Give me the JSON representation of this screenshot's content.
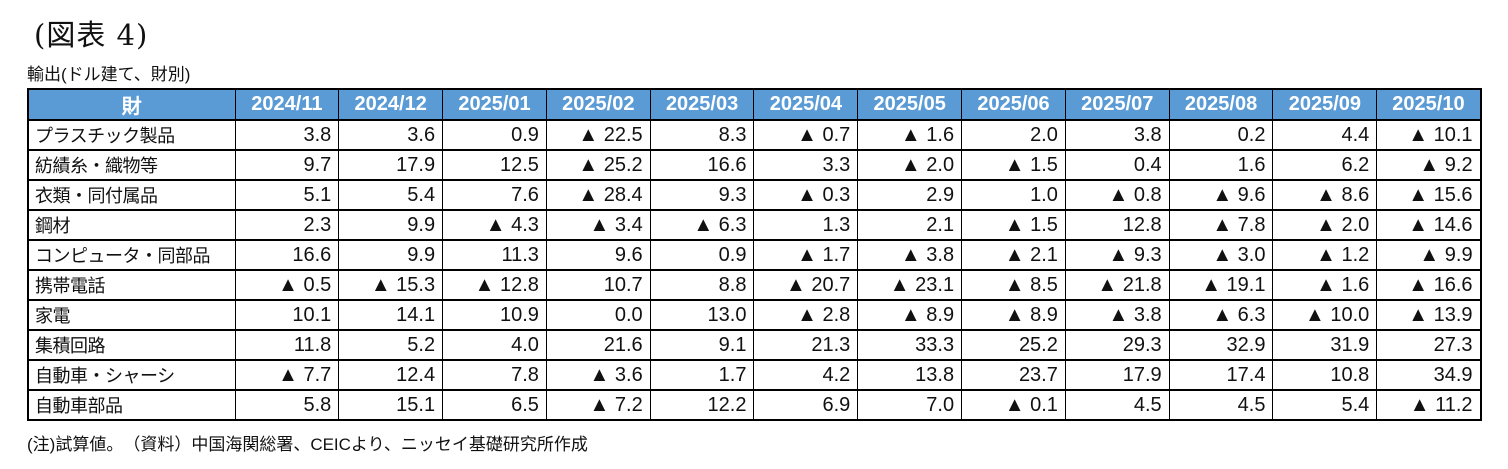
{
  "page": {
    "figure_label": "(図表 4)",
    "subtitle": "輸出(ドル建て、財別)",
    "note": "(注)試算値。　（資料）中国海関総署、CEICより、ニッセイ基礎研究所作成"
  },
  "colors": {
    "header_bg": "#5B9BD5",
    "header_text": "#FFFFFF",
    "border": "#000000"
  },
  "chart_data": {
    "type": "table",
    "title": "輸出(ドル建て、財別)",
    "header": [
      "財",
      "2024/11",
      "2024/12",
      "2025/01",
      "2025/02",
      "2025/03",
      "2025/04",
      "2025/05",
      "2025/06",
      "2025/07",
      "2025/08",
      "2025/09",
      "2025/10"
    ],
    "rows": [
      {
        "label": "プラスチック製品",
        "values": [
          "3.8",
          "3.6",
          "0.9",
          "▲ 22.5",
          "8.3",
          "▲ 0.7",
          "▲ 1.6",
          "2.0",
          "3.8",
          "0.2",
          "4.4",
          "▲ 10.1"
        ]
      },
      {
        "label": "紡績糸・織物等",
        "values": [
          "9.7",
          "17.9",
          "12.5",
          "▲ 25.2",
          "16.6",
          "3.3",
          "▲ 2.0",
          "▲ 1.5",
          "0.4",
          "1.6",
          "6.2",
          "▲ 9.2"
        ]
      },
      {
        "label": "衣類・同付属品",
        "values": [
          "5.1",
          "5.4",
          "7.6",
          "▲ 28.4",
          "9.3",
          "▲ 0.3",
          "2.9",
          "1.0",
          "▲ 0.8",
          "▲ 9.6",
          "▲ 8.6",
          "▲ 15.6"
        ]
      },
      {
        "label": "鋼材",
        "values": [
          "2.3",
          "9.9",
          "▲ 4.3",
          "▲ 3.4",
          "▲ 6.3",
          "1.3",
          "2.1",
          "▲ 1.5",
          "12.8",
          "▲ 7.8",
          "▲ 2.0",
          "▲ 14.6"
        ]
      },
      {
        "label": "コンピュータ・同部品",
        "values": [
          "16.6",
          "9.9",
          "11.3",
          "9.6",
          "0.9",
          "▲ 1.7",
          "▲ 3.8",
          "▲ 2.1",
          "▲ 9.3",
          "▲ 3.0",
          "▲ 1.2",
          "▲ 9.9"
        ]
      },
      {
        "label": "携帯電話",
        "values": [
          "▲ 0.5",
          "▲ 15.3",
          "▲ 12.8",
          "10.7",
          "8.8",
          "▲ 20.7",
          "▲ 23.1",
          "▲ 8.5",
          "▲ 21.8",
          "▲ 19.1",
          "▲ 1.6",
          "▲ 16.6"
        ]
      },
      {
        "label": "家電",
        "values": [
          "10.1",
          "14.1",
          "10.9",
          "0.0",
          "13.0",
          "▲ 2.8",
          "▲ 8.9",
          "▲ 8.9",
          "▲ 3.8",
          "▲ 6.3",
          "▲ 10.0",
          "▲ 13.9"
        ]
      },
      {
        "label": "集積回路",
        "values": [
          "11.8",
          "5.2",
          "4.0",
          "21.6",
          "9.1",
          "21.3",
          "33.3",
          "25.2",
          "29.3",
          "32.9",
          "31.9",
          "27.3"
        ]
      },
      {
        "label": "自動車・シャーシ",
        "values": [
          "▲ 7.7",
          "12.4",
          "7.8",
          "▲ 3.6",
          "1.7",
          "4.2",
          "13.8",
          "23.7",
          "17.9",
          "17.4",
          "10.8",
          "34.9"
        ]
      },
      {
        "label": "自動車部品",
        "values": [
          "5.8",
          "15.1",
          "6.5",
          "▲ 7.2",
          "12.2",
          "6.9",
          "7.0",
          "▲ 0.1",
          "4.5",
          "4.5",
          "5.4",
          "▲ 11.2"
        ]
      }
    ]
  }
}
